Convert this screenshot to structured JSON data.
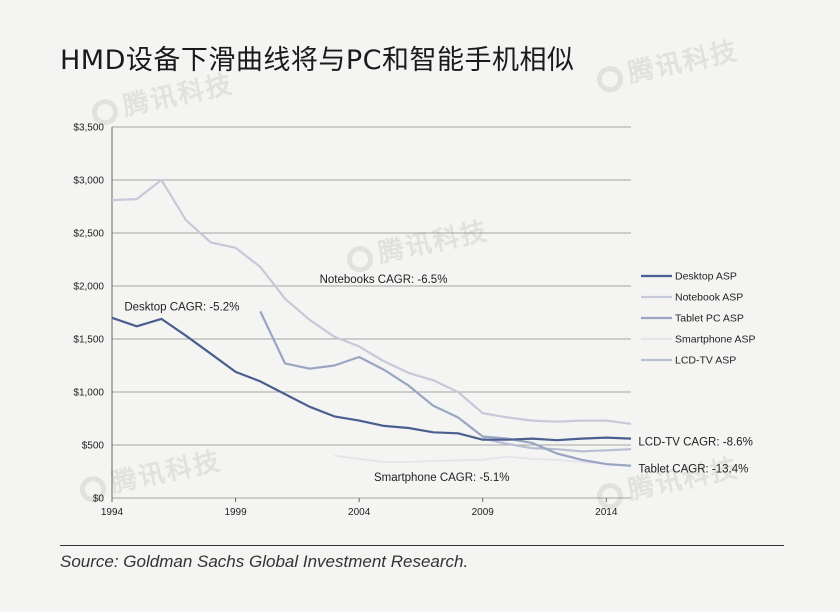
{
  "page": {
    "title": "HMD设备下滑曲线将与PC和智能手机相似",
    "source": "Source: Goldman Sachs Global Investment Research.",
    "watermark": "腾讯科技"
  },
  "chart_data": {
    "type": "line",
    "xlim": [
      1994,
      2015
    ],
    "ylim": [
      0,
      3500
    ],
    "x_ticks": [
      1994,
      1999,
      2004,
      2009,
      2014
    ],
    "y_ticks": [
      {
        "v": 0,
        "label": "$0"
      },
      {
        "v": 500,
        "label": "$500"
      },
      {
        "v": 1000,
        "label": "$1,000"
      },
      {
        "v": 1500,
        "label": "$1,500"
      },
      {
        "v": 2000,
        "label": "$2,000"
      },
      {
        "v": 2500,
        "label": "$2,500"
      },
      {
        "v": 3000,
        "label": "$3,000"
      },
      {
        "v": 3500,
        "label": "$3,500"
      }
    ],
    "grid": true,
    "legend_position": "right",
    "series": [
      {
        "name": "Desktop ASP",
        "color": "#4a5f8f",
        "width": 2.2,
        "x": [
          1994,
          1995,
          1996,
          1997,
          1998,
          1999,
          2000,
          2001,
          2002,
          2003,
          2004,
          2005,
          2006,
          2007,
          2008,
          2009,
          2010,
          2011,
          2012,
          2013,
          2014,
          2015
        ],
        "y": [
          1700,
          1620,
          1690,
          1530,
          1360,
          1190,
          1100,
          980,
          860,
          770,
          730,
          680,
          660,
          620,
          610,
          550,
          550,
          560,
          545,
          560,
          570,
          560
        ]
      },
      {
        "name": "Notebook ASP",
        "color": "#c5c9d8",
        "width": 2.2,
        "x": [
          1994,
          1995,
          1996,
          1997,
          1998,
          1999,
          2000,
          2001,
          2002,
          2003,
          2004,
          2005,
          2006,
          2007,
          2008,
          2009,
          2010,
          2011,
          2012,
          2013,
          2014,
          2015
        ],
        "y": [
          2810,
          2820,
          3000,
          2620,
          2410,
          2360,
          2180,
          1880,
          1680,
          1520,
          1430,
          1290,
          1180,
          1110,
          1000,
          800,
          760,
          730,
          720,
          730,
          730,
          700
        ]
      },
      {
        "name": "Tablet PC ASP",
        "color": "#9aa5c3",
        "width": 2.2,
        "x": [
          2000,
          2001,
          2002,
          2003,
          2004,
          2005,
          2006,
          2007,
          2008,
          2009,
          2010,
          2011,
          2012,
          2013,
          2014,
          2015
        ],
        "y": [
          1760,
          1270,
          1220,
          1250,
          1330,
          1210,
          1060,
          870,
          760,
          580,
          560,
          520,
          420,
          360,
          320,
          305
        ]
      },
      {
        "name": "Smartphone ASP",
        "color": "#e4e5ea",
        "width": 1.8,
        "x": [
          2003,
          2004,
          2005,
          2006,
          2007,
          2008,
          2009,
          2010,
          2011,
          2012,
          2013,
          2014,
          2015
        ],
        "y": [
          400,
          370,
          340,
          340,
          350,
          355,
          360,
          390,
          370,
          360,
          340,
          320,
          300
        ]
      },
      {
        "name": "LCD-TV ASP",
        "color": "#b9bfd3",
        "width": 2.2,
        "x": [
          2009,
          2010,
          2011,
          2012,
          2013,
          2014,
          2015
        ],
        "y": [
          560,
          510,
          470,
          460,
          440,
          450,
          460
        ]
      }
    ],
    "annotations": [
      {
        "text": "Notebooks CAGR: -6.5%",
        "x": 2002.4,
        "y": 2030
      },
      {
        "text": "Desktop CAGR: -5.2%",
        "x": 1994.5,
        "y": 1770
      },
      {
        "text": "LCD-TV CAGR: -8.6%",
        "x": 2015.3,
        "y": 495
      },
      {
        "text": "Tablet CAGR: -13.4%",
        "x": 2015.3,
        "y": 240
      },
      {
        "text": "Smartphone CAGR: -5.1%",
        "x": 2004.6,
        "y": 160
      }
    ]
  }
}
